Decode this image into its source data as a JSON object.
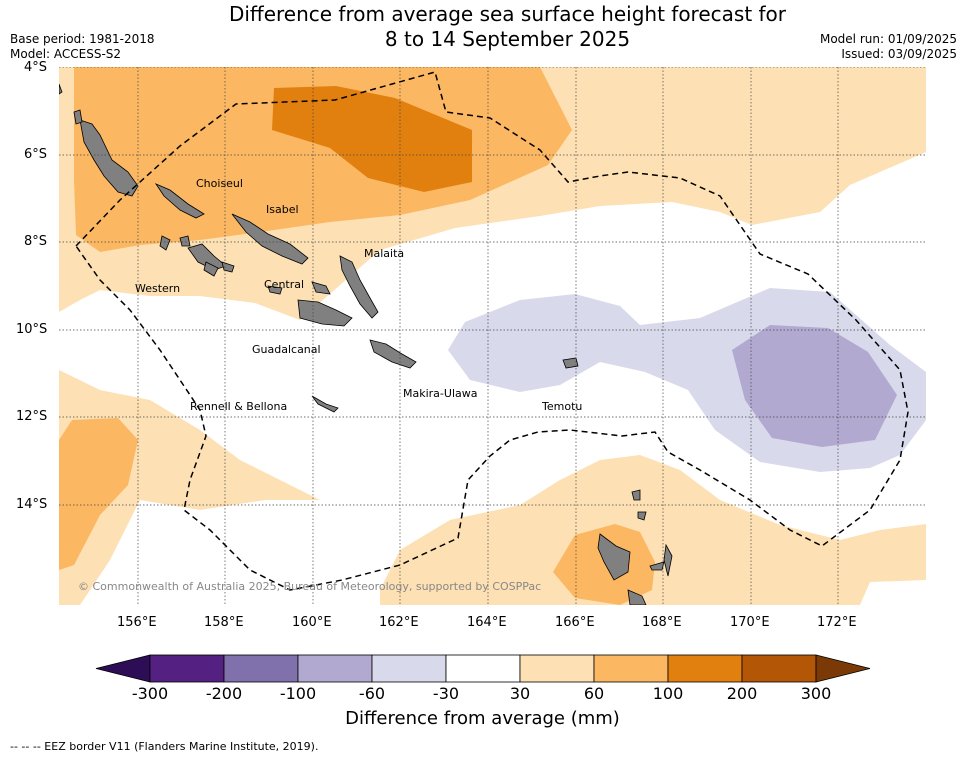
{
  "title": {
    "line1": "Difference from average sea surface height forecast for",
    "line2": "8 to 14 September 2025"
  },
  "meta_left": {
    "base_period": "Base period: 1981-2018",
    "model": "Model: ACCESS-S2"
  },
  "meta_right": {
    "model_run": "Model run: 01/09/2025",
    "issued": "Issued: 03/09/2025"
  },
  "axes": {
    "y_ticks": [
      "4°S",
      "6°S",
      "8°S",
      "10°S",
      "12°S",
      "14°S"
    ],
    "x_ticks": [
      "156°E",
      "158°E",
      "160°E",
      "162°E",
      "164°E",
      "166°E",
      "168°E",
      "170°E",
      "172°E"
    ]
  },
  "provinces": [
    "Choiseul",
    "Isabel",
    "Malaita",
    "Western",
    "Central",
    "Guadalcanal",
    "Rennell & Bellona",
    "Makira-Ulawa",
    "Temotu"
  ],
  "copyright": "© Commonwealth of Australia 2025, Bureau of Meteorology, supported by COSPPac",
  "colorbar": {
    "title": "Difference from average (mm)",
    "labels": [
      "-300",
      "-200",
      "-100",
      "-60",
      "-30",
      "30",
      "60",
      "100",
      "200",
      "300"
    ],
    "colors": [
      "#2d0d55",
      "#542081",
      "#8070ab",
      "#b1a9d0",
      "#d8d9ea",
      "#ffffff",
      "#fde0b3",
      "#fbb762",
      "#e2800f",
      "#b35706",
      "#7b3a05"
    ]
  },
  "footer": "--  --  -- EEZ border V11 (Flanders Marine Institute, 2019)."
}
